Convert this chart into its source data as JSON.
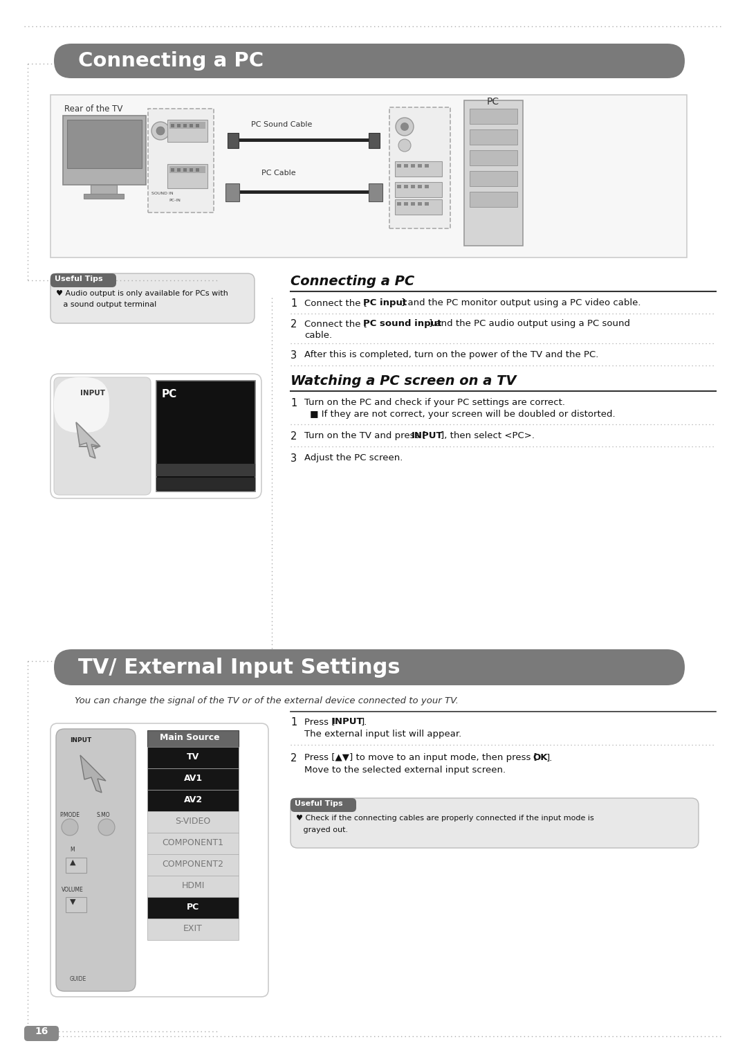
{
  "page_bg": "#ffffff",
  "page_width": 10.8,
  "page_height": 15.27,
  "page_number": "16",
  "section1_title": "Connecting a PC",
  "section1_title_bg": "#7a7a7a",
  "section1_title_color": "#ffffff",
  "section2_title": "TV/ External Input Settings",
  "section2_title_bg": "#7a7a7a",
  "section2_title_color": "#ffffff",
  "section2_subtitle": "You can change the signal of the TV or of the external device connected to your TV.",
  "connecting_pc_heading": "Connecting a PC",
  "watching_heading": "Watching a PC screen on a TV",
  "useful_tips_label": "Useful Tips",
  "useful_tips1_line1": "♥ Audio output is only available for PCs with",
  "useful_tips1_line2": "   a sound output terminal",
  "useful_tips2_label": "Useful Tips",
  "useful_tips2_line1": "♥ Check if the connecting cables are properly connected if the input mode is",
  "useful_tips2_line2": "   grayed out.",
  "rear_tv_label": "Rear of the TV",
  "pc_label": "PC",
  "pc_sound_cable_label": "PC Sound Cable",
  "pc_cable_label": "PC Cable",
  "main_source_label": "Main Source",
  "main_source_items": [
    "TV",
    "AV1",
    "AV2",
    "S-VIDEO",
    "COMPONENT1",
    "COMPONENT2",
    "HDMI",
    "PC",
    "EXIT"
  ],
  "main_source_dark": [
    "TV",
    "AV1",
    "AV2",
    "PC"
  ],
  "connect_step1a": "Connect the [",
  "connect_step1b": "PC input",
  "connect_step1c": "] and the PC monitor output using a PC video cable.",
  "connect_step2a": "Connect the [",
  "connect_step2b": "PC sound input",
  "connect_step2c": "] and the PC audio output using a PC sound",
  "connect_step2d": "cable.",
  "connect_step3": "After this is completed, turn on the power of the TV and the PC.",
  "watch_step1a": "Turn on the PC and check if your PC settings are correct.",
  "watch_step1b": "■ If they are not correct, your screen will be doubled or distorted.",
  "watch_step2a": "Turn on the TV and press [",
  "watch_step2b": "INPUT",
  "watch_step2c": "], then select <PC>.",
  "watch_step3": "Adjust the PC screen.",
  "ext_step1a": "Press [",
  "ext_step1b": "INPUT",
  "ext_step1c": "].",
  "ext_step1d": "The external input list will appear.",
  "ext_step2a": "Press [▲▼] to move to an input mode, then press [",
  "ext_step2b": "OK",
  "ext_step2c": "].",
  "ext_step2d": "Move to the selected external input screen."
}
